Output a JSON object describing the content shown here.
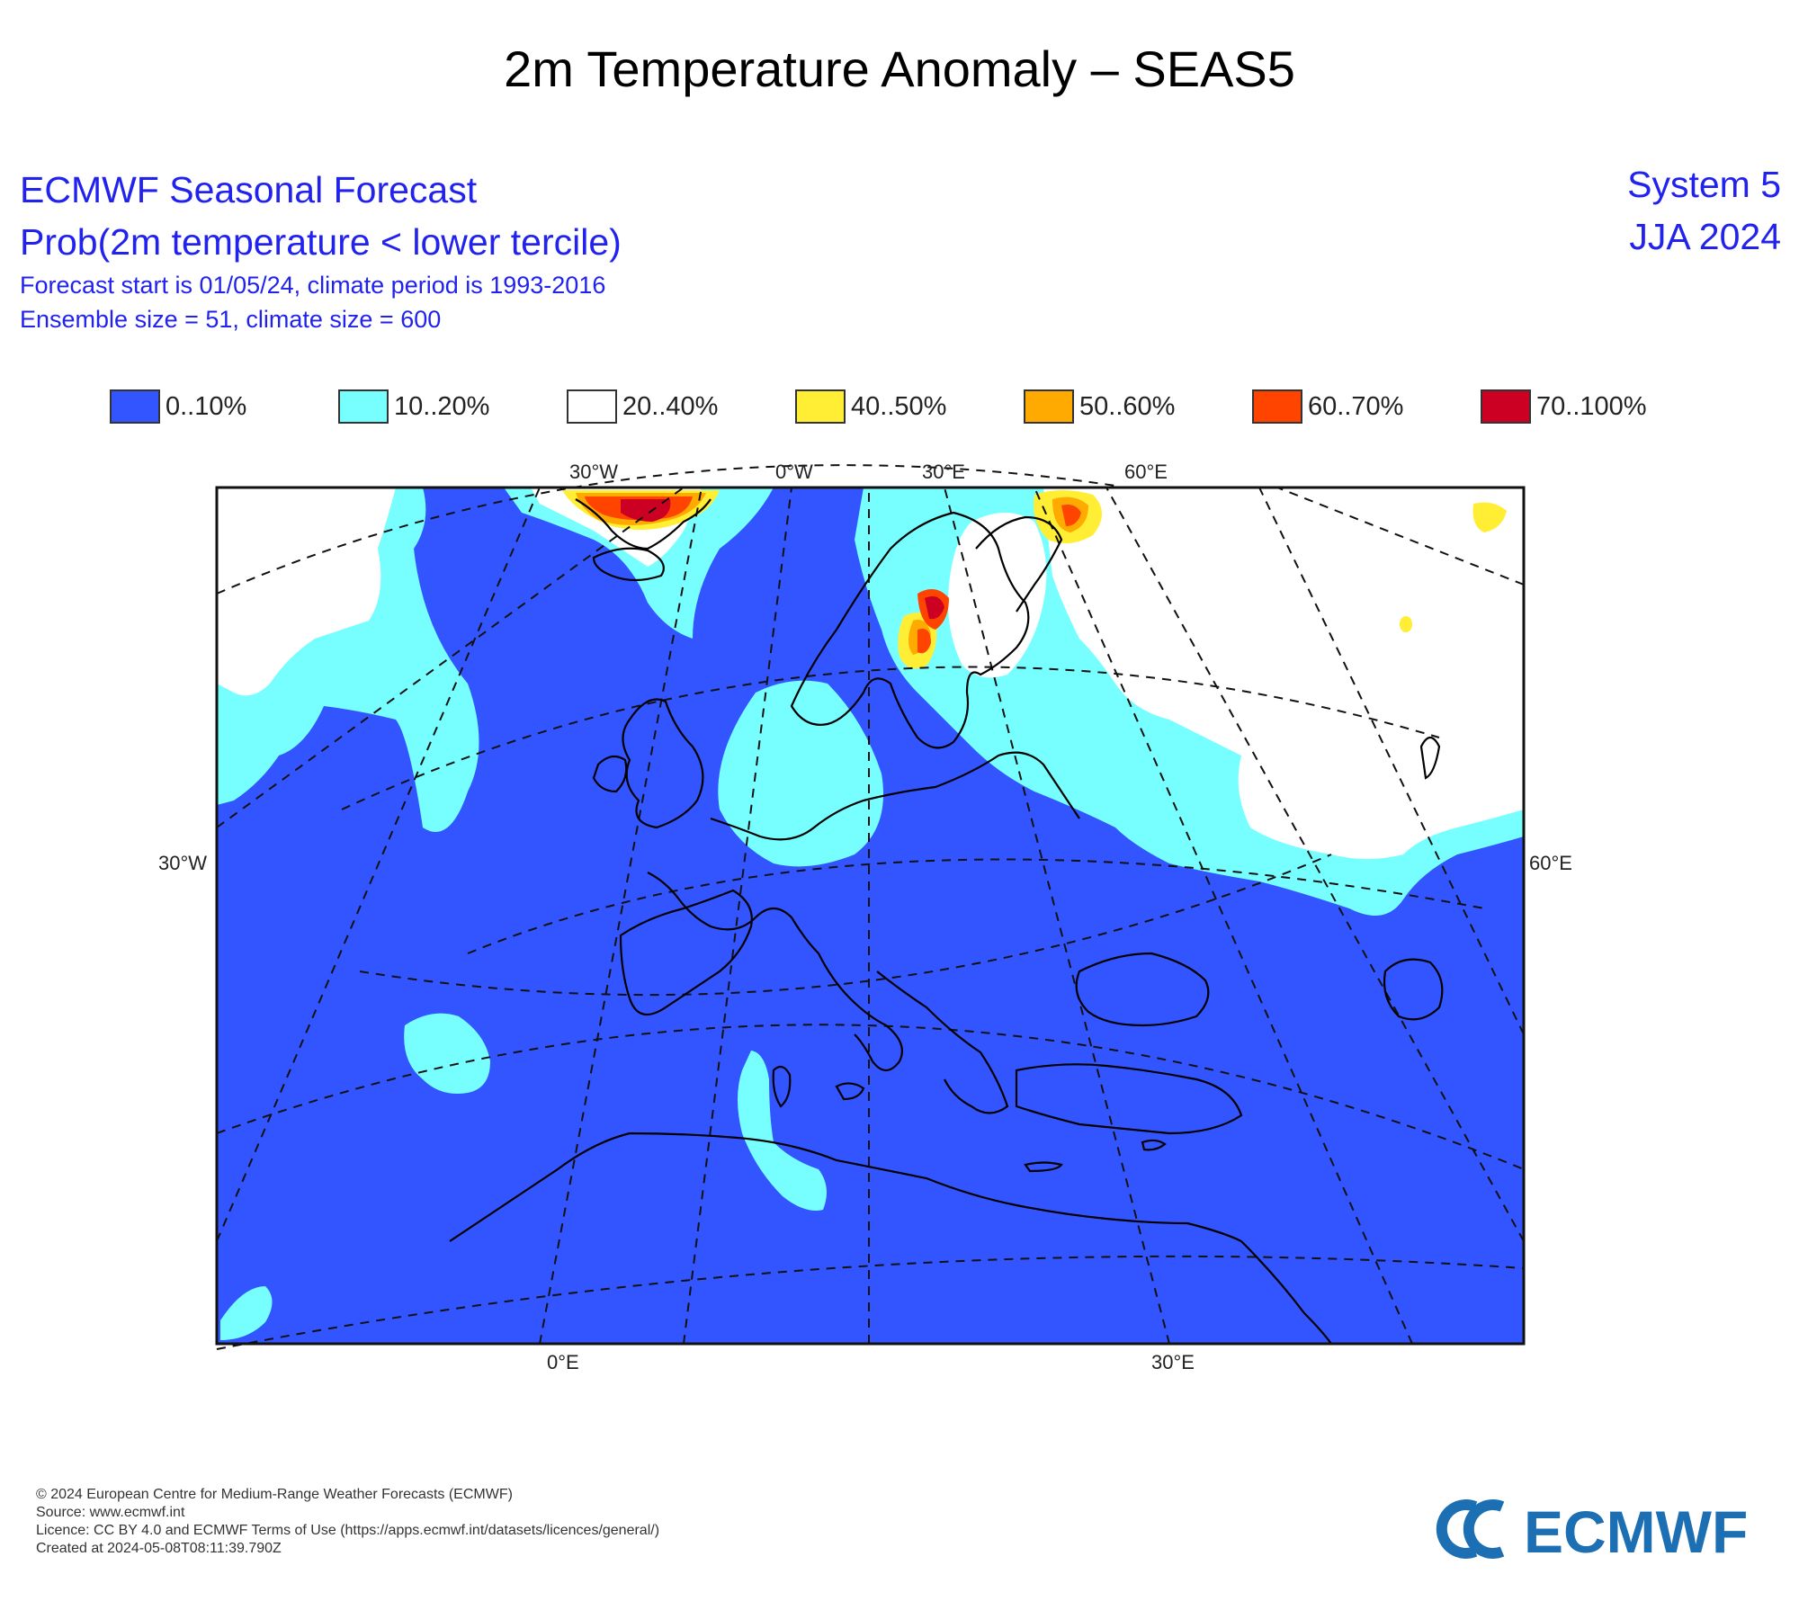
{
  "title": "2m Temperature Anomaly – SEAS5",
  "header": {
    "line1": "ECMWF Seasonal Forecast",
    "line2": "Prob(2m temperature < lower tercile)",
    "line3": "Forecast start is 01/05/24, climate period is 1993-2016",
    "line4": "Ensemble size = 51, climate size = 600",
    "system": "System 5",
    "season": "JJA 2024"
  },
  "legend": [
    {
      "label": "0..10%",
      "color": "#3355ff"
    },
    {
      "label": "10..20%",
      "color": "#77ffff"
    },
    {
      "label": "20..40%",
      "color": "#ffffff"
    },
    {
      "label": "40..50%",
      "color": "#ffee33"
    },
    {
      "label": "50..60%",
      "color": "#ffaa00"
    },
    {
      "label": "60..70%",
      "color": "#ff4400"
    },
    {
      "label": "70..100%",
      "color": "#cc0022"
    }
  ],
  "map": {
    "labels": {
      "lon_top_1": "30°W",
      "lon_top_2": "0°W",
      "lon_top_3": "30°E",
      "lon_top_4": "60°E",
      "lat_left": "30°W",
      "lat_right": "60°E",
      "lon_bottom_1": "0°E",
      "lon_bottom_2": "30°E"
    }
  },
  "footer": {
    "copyright": "© 2024 European Centre for Medium-Range Weather Forecasts (ECMWF)",
    "source": "Source: www.ecmwf.int",
    "licence": "Licence: CC BY 4.0 and ECMWF Terms of Use (https://apps.ecmwf.int/datasets/licences/general/)",
    "created": "Created at 2024-05-08T08:11:39.790Z"
  },
  "logo": {
    "text": "ECMWF",
    "color": "#1d6fb4"
  }
}
